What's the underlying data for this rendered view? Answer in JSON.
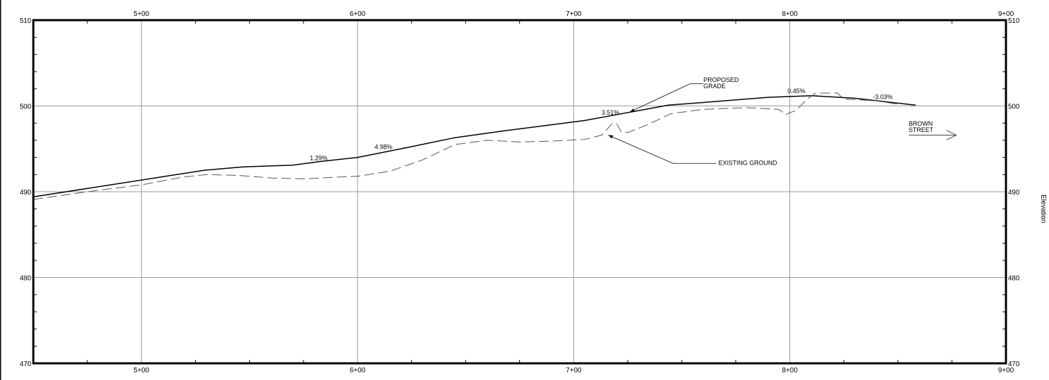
{
  "chart_data": {
    "type": "line",
    "title": "",
    "xlabel": "",
    "ylabel": "Elevation",
    "xlim": [
      450,
      900
    ],
    "ylim": [
      470,
      510
    ],
    "x_ticks": [
      {
        "value": 500,
        "label": "5+00"
      },
      {
        "value": 600,
        "label": "6+00"
      },
      {
        "value": 700,
        "label": "7+00"
      },
      {
        "value": 800,
        "label": "8+00"
      },
      {
        "value": 900,
        "label": "9+00"
      }
    ],
    "y_ticks": [
      {
        "value": 470,
        "label": "470"
      },
      {
        "value": 480,
        "label": "480"
      },
      {
        "value": 490,
        "label": "490"
      },
      {
        "value": 500,
        "label": "500"
      },
      {
        "value": 510,
        "label": "510"
      }
    ],
    "grid": true,
    "series": [
      {
        "name": "PROPOSED GRADE",
        "style": "solid",
        "points": [
          [
            450,
            489.4
          ],
          [
            529,
            492.5
          ],
          [
            547,
            492.9
          ],
          [
            570,
            493.1
          ],
          [
            582,
            493.5
          ],
          [
            600,
            494.0
          ],
          [
            622,
            495.1
          ],
          [
            645,
            496.3
          ],
          [
            668,
            497.1
          ],
          [
            705,
            498.3
          ],
          [
            744,
            500.1
          ],
          [
            765,
            500.5
          ],
          [
            790,
            501.0
          ],
          [
            810,
            501.2
          ],
          [
            830,
            500.9
          ],
          [
            858,
            500.1
          ]
        ]
      },
      {
        "name": "EXISTING GROUND",
        "style": "dashed",
        "points": [
          [
            450,
            489.1
          ],
          [
            475,
            490.0
          ],
          [
            500,
            490.8
          ],
          [
            519,
            491.7
          ],
          [
            530,
            492.0
          ],
          [
            545,
            491.9
          ],
          [
            560,
            491.6
          ],
          [
            575,
            491.5
          ],
          [
            590,
            491.7
          ],
          [
            600,
            491.8
          ],
          [
            615,
            492.4
          ],
          [
            630,
            493.7
          ],
          [
            645,
            495.5
          ],
          [
            660,
            496.0
          ],
          [
            675,
            495.8
          ],
          [
            690,
            495.9
          ],
          [
            705,
            496.1
          ],
          [
            713,
            496.6
          ],
          [
            718,
            498.0
          ],
          [
            720,
            497.9
          ],
          [
            722,
            497.0
          ],
          [
            725,
            496.9
          ],
          [
            735,
            497.9
          ],
          [
            745,
            499.1
          ],
          [
            760,
            499.6
          ],
          [
            780,
            499.8
          ],
          [
            795,
            499.6
          ],
          [
            798,
            499.0
          ],
          [
            803,
            499.5
          ],
          [
            808,
            500.8
          ],
          [
            812,
            501.5
          ],
          [
            822,
            501.5
          ],
          [
            825,
            500.8
          ],
          [
            840,
            500.6
          ],
          [
            850,
            500.2
          ]
        ]
      },
      {
        "name": "BROWN STREET",
        "style": "arrow",
        "points": [
          [
            855,
            496.6
          ],
          [
            877,
            496.6
          ]
        ]
      }
    ],
    "grade_labels": [
      {
        "text": "1.29%",
        "x": 582,
        "y": 493.7
      },
      {
        "text": "4.98%",
        "x": 612,
        "y": 495.0
      },
      {
        "text": "3.51%",
        "x": 717,
        "y": 499.0
      },
      {
        "text": "0.45%",
        "x": 803,
        "y": 501.5
      },
      {
        "text": "-3.03%",
        "x": 843,
        "y": 500.8
      }
    ],
    "annotations": [
      {
        "lines": [
          "PROPOSED",
          "GRADE"
        ],
        "x": 760,
        "y": 502.8,
        "pointer": {
          "tail": [
            760,
            502.6
          ],
          "via": [
            754,
            502.6
          ],
          "head": [
            726,
            499.3
          ]
        }
      },
      {
        "lines": [
          "EXISTING GROUND"
        ],
        "x": 767,
        "y": 493.1,
        "pointer": {
          "tail": [
            766,
            493.3
          ],
          "via": [
            746,
            493.3
          ],
          "head": [
            716,
            496.6
          ]
        }
      },
      {
        "lines": [
          "BROWN",
          "STREET"
        ],
        "x": 855,
        "y": 497.7
      }
    ]
  }
}
